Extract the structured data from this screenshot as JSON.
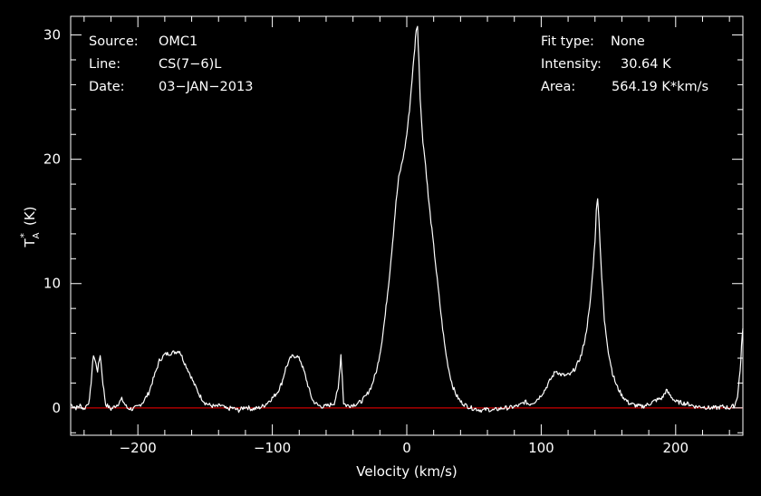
{
  "chart_data": {
    "type": "line",
    "xlabel": "Velocity (km/s)",
    "ylabel": {
      "main": "T",
      "sub": "A",
      "sup": "*",
      "unit": "(K)"
    },
    "xlim": [
      -250,
      250
    ],
    "ylim": [
      -2.2,
      31.5
    ],
    "xticks": [
      -200,
      -100,
      0,
      100,
      200
    ],
    "xtick_labels": [
      "−200",
      "−100",
      "0",
      "100",
      "200"
    ],
    "yticks": [
      0,
      10,
      20,
      30
    ],
    "ytick_labels": [
      "0",
      "10",
      "20",
      "30"
    ],
    "grid": false,
    "baseline": 0,
    "colors": {
      "background": "#000000",
      "line": "#ffffff",
      "baseline": "#cc0000",
      "axes": "#ffffff"
    },
    "series": [
      {
        "x": [
          -250,
          -246,
          -243,
          -240,
          -236,
          -233,
          -230,
          -228,
          -226,
          -224,
          -220,
          -215,
          -212,
          -208,
          -204,
          -200,
          -196,
          -192,
          -188,
          -184,
          -180,
          -176,
          -172,
          -169,
          -166,
          -162,
          -158,
          -154,
          -150,
          -146,
          -142,
          -138,
          -134,
          -130,
          -125,
          -120,
          -115,
          -110,
          -106,
          -102,
          -99,
          -96,
          -93,
          -90,
          -86,
          -82,
          -79,
          -76,
          -73,
          -70,
          -66,
          -62,
          -58,
          -54,
          -51,
          -49,
          -48,
          -47,
          -45,
          -42,
          -38,
          -34,
          -30,
          -26,
          -22,
          -19,
          -16,
          -13,
          -10,
          -8,
          -6,
          -4,
          -2,
          0,
          2,
          4,
          6,
          7,
          8,
          9,
          10,
          11,
          12,
          14,
          16,
          18,
          20,
          22,
          24,
          26,
          28,
          30,
          32,
          34,
          37,
          40,
          44,
          48,
          52,
          56,
          60,
          64,
          68,
          72,
          76,
          80,
          84,
          88,
          91,
          95,
          99,
          103,
          107,
          111,
          114,
          118,
          122,
          126,
          130,
          133,
          136,
          138,
          140,
          141,
          142,
          143,
          145,
          147,
          150,
          153,
          156,
          160,
          165,
          170,
          175,
          180,
          185,
          190,
          193,
          196,
          200,
          205,
          210,
          215,
          220,
          225,
          230,
          235,
          240,
          244,
          246,
          248,
          249,
          250
        ],
        "y": [
          0.3,
          0.0,
          0.2,
          -0.1,
          0.6,
          4.3,
          3.0,
          4.3,
          2.0,
          0.3,
          -0.1,
          0.3,
          0.7,
          0.0,
          -0.1,
          0.1,
          0.5,
          1.2,
          2.5,
          3.8,
          4.3,
          4.4,
          4.5,
          4.6,
          3.8,
          2.9,
          1.9,
          1.0,
          0.4,
          0.2,
          0.1,
          0.2,
          -0.1,
          0.0,
          -0.2,
          0.1,
          -0.1,
          0.0,
          0.2,
          0.6,
          0.9,
          1.3,
          2.0,
          3.2,
          4.1,
          4.2,
          3.8,
          2.8,
          1.6,
          0.6,
          0.2,
          0.1,
          0.2,
          0.4,
          1.5,
          4.3,
          2.5,
          0.4,
          0.2,
          0.2,
          0.3,
          0.5,
          1.0,
          1.8,
          3.2,
          5.0,
          7.5,
          10.5,
          14.0,
          16.5,
          18.5,
          19.5,
          20.5,
          22.0,
          24.0,
          26.5,
          29.0,
          30.5,
          30.6,
          28.0,
          25.0,
          23.0,
          21.5,
          19.5,
          17.0,
          15.0,
          13.0,
          11.0,
          9.0,
          7.0,
          5.2,
          3.8,
          2.7,
          1.8,
          1.0,
          0.5,
          0.2,
          0.0,
          -0.1,
          -0.2,
          -0.1,
          -0.2,
          -0.1,
          0.0,
          0.0,
          0.1,
          0.2,
          0.5,
          0.3,
          0.5,
          0.9,
          1.5,
          2.3,
          3.0,
          2.7,
          2.6,
          2.7,
          3.3,
          4.3,
          5.8,
          8.0,
          10.5,
          13.5,
          15.8,
          17.0,
          15.0,
          10.5,
          7.0,
          4.5,
          2.8,
          1.8,
          1.0,
          0.4,
          0.2,
          0.1,
          0.3,
          0.6,
          0.8,
          1.4,
          1.0,
          0.5,
          0.4,
          0.3,
          0.1,
          0.1,
          0.0,
          0.0,
          0.1,
          0.0,
          0.2,
          1.0,
          3.0,
          5.0,
          6.4
        ]
      }
    ]
  },
  "header": {
    "left": [
      {
        "key": "Source:",
        "value": "OMC1"
      },
      {
        "key": "Line:",
        "value": "CS(7−6)L"
      },
      {
        "key": "Date:",
        "value": "03−JAN−2013"
      }
    ],
    "right": [
      {
        "key": "Fit type:",
        "value": "None"
      },
      {
        "key": "Intensity:",
        "value": "30.64 K"
      },
      {
        "key": "Area:",
        "value": "564.19 K*km/s"
      }
    ]
  }
}
